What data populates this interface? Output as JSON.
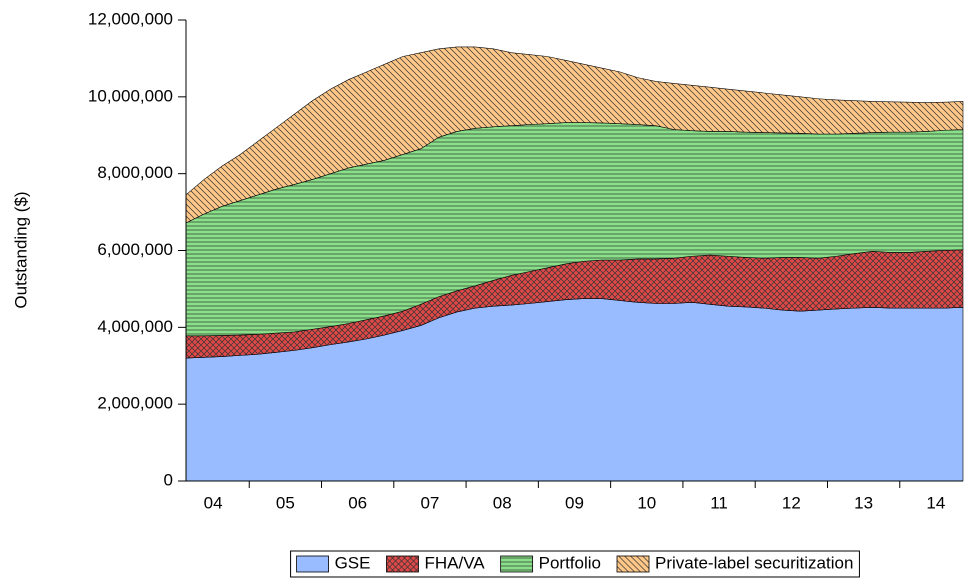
{
  "chart_data": {
    "type": "stacked-area",
    "y_label": "Outstanding ($)",
    "categories": [
      null,
      "04",
      null,
      null,
      null,
      "05",
      null,
      null,
      null,
      "06",
      null,
      null,
      null,
      "07",
      null,
      null,
      null,
      "08",
      null,
      null,
      null,
      "09",
      null,
      null,
      null,
      "10",
      null,
      null,
      null,
      "11",
      null,
      null,
      null,
      "12",
      null,
      null,
      null,
      "13",
      null,
      null,
      null,
      "14",
      null,
      null
    ],
    "ylim": [
      0,
      12000000
    ],
    "yticks": [
      0,
      {
        "value": 2000000,
        "label": "2,000,000"
      },
      {
        "value": 4000000,
        "label": "4,000,000"
      },
      {
        "value": 6000000,
        "label": "6,000,000"
      },
      {
        "value": 8000000,
        "label": "8,000,000"
      },
      {
        "value": 10000000,
        "label": "10,000,000"
      },
      {
        "value": 12000000,
        "label": "12,000,000"
      }
    ],
    "legend": "bottom",
    "series": [
      {
        "name": "GSE",
        "color": "#99bbff",
        "pattern": "solid",
        "values": [
          3200000,
          3220000,
          3240000,
          3270000,
          3300000,
          3350000,
          3400000,
          3470000,
          3550000,
          3620000,
          3700000,
          3800000,
          3920000,
          4050000,
          4250000,
          4400000,
          4500000,
          4550000,
          4580000,
          4620000,
          4670000,
          4720000,
          4750000,
          4750000,
          4700000,
          4650000,
          4620000,
          4620000,
          4650000,
          4600000,
          4550000,
          4530000,
          4500000,
          4450000,
          4420000,
          4450000,
          4480000,
          4500000,
          4520000,
          4500000,
          4500000,
          4500000,
          4500000,
          4520000
        ]
      },
      {
        "name": "FHA/VA",
        "color": "#e04848",
        "pattern": "crosshatch",
        "values": [
          580000,
          560000,
          550000,
          530000,
          520000,
          500000,
          480000,
          480000,
          470000,
          480000,
          500000,
          500000,
          500000,
          550000,
          550000,
          550000,
          580000,
          670000,
          770000,
          830000,
          880000,
          930000,
          970000,
          1000000,
          1050000,
          1130000,
          1160000,
          1180000,
          1200000,
          1280000,
          1300000,
          1290000,
          1300000,
          1370000,
          1400000,
          1350000,
          1370000,
          1420000,
          1460000,
          1450000,
          1450000,
          1480000,
          1500000,
          1500000
        ]
      },
      {
        "name": "Portfolio",
        "color": "#88e088",
        "pattern": "horizontal",
        "values": [
          2940000,
          3170000,
          3360000,
          3500000,
          3630000,
          3750000,
          3840000,
          3900000,
          3980000,
          4050000,
          4050000,
          4050000,
          4080000,
          4050000,
          4150000,
          4150000,
          4100000,
          4000000,
          3900000,
          3830000,
          3750000,
          3680000,
          3610000,
          3570000,
          3550000,
          3500000,
          3470000,
          3350000,
          3270000,
          3220000,
          3250000,
          3260000,
          3270000,
          3240000,
          3230000,
          3230000,
          3180000,
          3130000,
          3090000,
          3130000,
          3130000,
          3120000,
          3130000,
          3130000
        ]
      },
      {
        "name": "Private-label securitization",
        "color": "#ffc888",
        "pattern": "diagonal",
        "values": [
          730000,
          900000,
          1050000,
          1200000,
          1400000,
          1600000,
          1830000,
          2050000,
          2200000,
          2300000,
          2400000,
          2500000,
          2550000,
          2500000,
          2300000,
          2200000,
          2120000,
          2030000,
          1900000,
          1820000,
          1750000,
          1620000,
          1520000,
          1430000,
          1350000,
          1220000,
          1150000,
          1200000,
          1180000,
          1150000,
          1100000,
          1070000,
          1030000,
          990000,
          950000,
          920000,
          890000,
          850000,
          810000,
          790000,
          780000,
          750000,
          730000,
          730000
        ]
      }
    ]
  }
}
